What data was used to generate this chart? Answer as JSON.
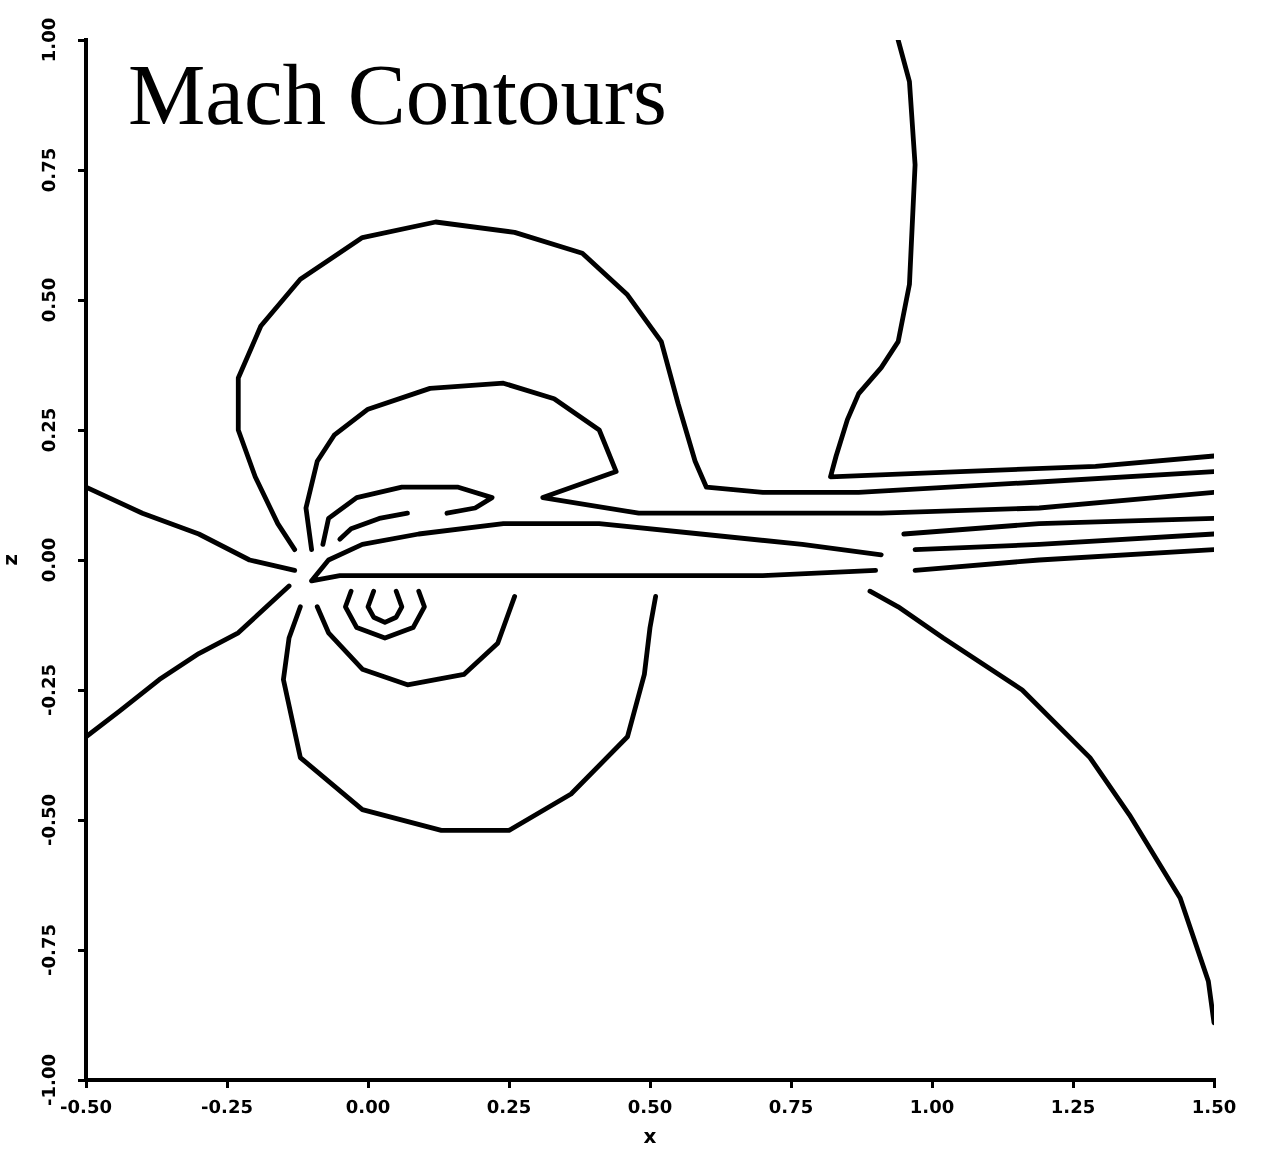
{
  "chart_data": {
    "type": "line",
    "title": "Mach Contours",
    "xlabel": "x",
    "ylabel": "z",
    "xlim": [
      -0.5,
      1.5
    ],
    "ylim": [
      -1,
      1
    ],
    "xticks": [
      {
        "value": -0.5,
        "label": "-0.50"
      },
      {
        "value": -0.25,
        "label": "-0.25"
      },
      {
        "value": 0,
        "label": "0.00"
      },
      {
        "value": 0.25,
        "label": "0.25"
      },
      {
        "value": 0.5,
        "label": "0.50"
      },
      {
        "value": 0.75,
        "label": "0.75"
      },
      {
        "value": 1,
        "label": "1.00"
      },
      {
        "value": 1.25,
        "label": "1.25"
      },
      {
        "value": 1.5,
        "label": "1.50"
      }
    ],
    "yticks": [
      {
        "value": -1,
        "label": "-1.00"
      },
      {
        "value": -0.75,
        "label": "-0.75"
      },
      {
        "value": -0.5,
        "label": "-0.50"
      },
      {
        "value": -0.25,
        "label": "-0.25"
      },
      {
        "value": 0,
        "label": "0.00"
      },
      {
        "value": 0.25,
        "label": "0.25"
      },
      {
        "value": 0.5,
        "label": "0.50"
      },
      {
        "value": 0.75,
        "label": "0.75"
      },
      {
        "value": 1,
        "label": "1.00"
      }
    ],
    "grid": false,
    "legend": false,
    "marker": "none",
    "line_style": "solid",
    "series": [
      {
        "color": "#000000",
        "x": [
          -0.5,
          -0.4,
          -0.3,
          -0.21,
          -0.13
        ],
        "values": [
          0.14,
          0.09,
          0.05,
          0.0,
          -0.02
        ]
      },
      {
        "color": "#000000",
        "x": [
          -0.5,
          -0.44,
          -0.37,
          -0.3,
          -0.23,
          -0.18,
          -0.14
        ],
        "values": [
          -0.34,
          -0.29,
          -0.23,
          -0.18,
          -0.14,
          -0.09,
          -0.05
        ]
      },
      {
        "color": "#000000",
        "x": [
          -0.13,
          -0.16,
          -0.2,
          -0.23,
          -0.23,
          -0.19,
          -0.12,
          -0.01,
          0.12,
          0.26,
          0.38,
          0.46,
          0.52,
          0.55,
          0.58,
          0.6,
          0.7,
          0.87,
          1.19,
          1.5
        ],
        "values": [
          0.02,
          0.07,
          0.16,
          0.25,
          0.35,
          0.45,
          0.54,
          0.62,
          0.65,
          0.63,
          0.59,
          0.51,
          0.42,
          0.3,
          0.19,
          0.14,
          0.13,
          0.13,
          0.15,
          0.17
        ]
      },
      {
        "color": "#000000",
        "x": [
          0.94,
          0.96,
          0.97,
          0.96,
          0.94,
          0.91,
          0.87,
          0.85,
          0.83,
          0.82,
          1.05,
          1.29,
          1.5
        ],
        "values": [
          1.0,
          0.92,
          0.76,
          0.53,
          0.42,
          0.37,
          0.32,
          0.27,
          0.2,
          0.16,
          0.17,
          0.18,
          0.2
        ]
      },
      {
        "color": "#000000",
        "x": [
          -0.1,
          -0.11,
          -0.09,
          -0.06,
          0.0,
          0.11,
          0.24,
          0.33,
          0.41,
          0.44,
          0.31,
          0.48,
          0.7,
          0.91,
          1.19,
          1.5
        ],
        "values": [
          0.02,
          0.1,
          0.19,
          0.24,
          0.29,
          0.33,
          0.34,
          0.31,
          0.25,
          0.17,
          0.12,
          0.09,
          0.09,
          0.09,
          0.1,
          0.13
        ]
      },
      {
        "color": "#000000",
        "x": [
          -0.08,
          -0.07,
          -0.02,
          0.06,
          0.16,
          0.22,
          0.19,
          0.14
        ],
        "values": [
          0.03,
          0.08,
          0.12,
          0.14,
          0.14,
          0.12,
          0.1,
          0.09
        ]
      },
      {
        "color": "#000000",
        "x": [
          -0.05,
          -0.03,
          0.02,
          0.07
        ],
        "values": [
          0.04,
          0.06,
          0.08,
          0.09
        ]
      },
      {
        "color": "#000000",
        "x": [
          0.91,
          0.77,
          0.59,
          0.41,
          0.24,
          0.09,
          -0.01,
          -0.07,
          -0.1,
          -0.05,
          0.06,
          0.24,
          0.48,
          0.7,
          0.9
        ],
        "values": [
          0.01,
          0.03,
          0.05,
          0.07,
          0.07,
          0.05,
          0.03,
          0.0,
          -0.04,
          -0.03,
          -0.03,
          -0.03,
          -0.03,
          -0.03,
          -0.02
        ]
      },
      {
        "color": "#000000",
        "x": [
          0.95,
          1.19,
          1.5
        ],
        "values": [
          0.05,
          0.07,
          0.08
        ]
      },
      {
        "color": "#000000",
        "x": [
          0.97,
          1.19,
          1.5
        ],
        "values": [
          0.02,
          0.03,
          0.05
        ]
      },
      {
        "color": "#000000",
        "x": [
          0.97,
          1.19,
          1.5
        ],
        "values": [
          -0.02,
          0.0,
          0.02
        ]
      },
      {
        "color": "#000000",
        "x": [
          0.89,
          0.94,
          1.02,
          1.16,
          1.28,
          1.35,
          1.44,
          1.49,
          1.5
        ],
        "values": [
          -0.06,
          -0.09,
          -0.15,
          -0.25,
          -0.38,
          -0.49,
          -0.65,
          -0.81,
          -0.89
        ]
      },
      {
        "color": "#000000",
        "x": [
          0.01,
          0.0,
          0.01,
          0.03,
          0.05,
          0.06,
          0.05
        ],
        "values": [
          -0.06,
          -0.09,
          -0.11,
          -0.12,
          -0.11,
          -0.09,
          -0.06
        ]
      },
      {
        "color": "#000000",
        "x": [
          -0.03,
          -0.04,
          -0.02,
          0.03,
          0.08,
          0.1,
          0.09
        ],
        "values": [
          -0.06,
          -0.09,
          -0.13,
          -0.15,
          -0.13,
          -0.09,
          -0.06
        ]
      },
      {
        "color": "#000000",
        "x": [
          -0.09,
          -0.07,
          -0.01,
          0.07,
          0.17,
          0.23,
          0.25,
          0.26
        ],
        "values": [
          -0.09,
          -0.14,
          -0.21,
          -0.24,
          -0.22,
          -0.16,
          -0.1,
          -0.07
        ]
      },
      {
        "color": "#000000",
        "x": [
          -0.12,
          -0.14,
          -0.15,
          -0.12,
          -0.01,
          0.13,
          0.25,
          0.36,
          0.46,
          0.49,
          0.5,
          0.51
        ],
        "values": [
          -0.09,
          -0.15,
          -0.23,
          -0.38,
          -0.48,
          -0.52,
          -0.52,
          -0.45,
          -0.34,
          -0.22,
          -0.13,
          -0.07
        ]
      }
    ]
  }
}
